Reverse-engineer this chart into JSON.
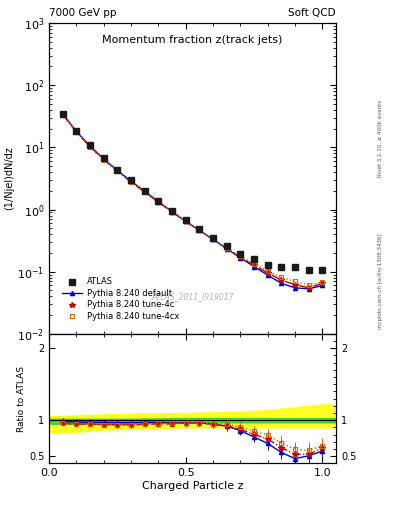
{
  "title_top_left": "7000 GeV pp",
  "title_top_right": "Soft QCD",
  "plot_title": "Momentum fraction z(track jets)",
  "ylabel_main": "(1/Njel)dN/dz",
  "ylabel_ratio": "Ratio to ATLAS",
  "xlabel": "Charged Particle z",
  "watermark": "ATLAS_2011_I919017",
  "right_label_top": "Rivet 3.1.10, ≥ 400k events",
  "right_label_bot": "mcplots.cern.ch [arXiv:1306.3436]",
  "z_values": [
    0.05,
    0.1,
    0.15,
    0.2,
    0.25,
    0.3,
    0.35,
    0.4,
    0.45,
    0.5,
    0.55,
    0.6,
    0.65,
    0.7,
    0.75,
    0.8,
    0.85,
    0.9,
    0.95,
    1.0
  ],
  "atlas_y": [
    35.0,
    18.5,
    10.8,
    6.7,
    4.4,
    2.95,
    2.02,
    1.38,
    0.96,
    0.67,
    0.48,
    0.35,
    0.255,
    0.195,
    0.158,
    0.13,
    0.118,
    0.118,
    0.105,
    0.105
  ],
  "atlas_yerr": [
    1.5,
    0.8,
    0.5,
    0.3,
    0.2,
    0.15,
    0.1,
    0.07,
    0.05,
    0.04,
    0.025,
    0.02,
    0.015,
    0.012,
    0.01,
    0.009,
    0.009,
    0.009,
    0.008,
    0.008
  ],
  "pythia_default_y": [
    34.5,
    18.0,
    10.5,
    6.5,
    4.25,
    2.85,
    1.96,
    1.34,
    0.925,
    0.645,
    0.462,
    0.33,
    0.234,
    0.167,
    0.121,
    0.088,
    0.065,
    0.055,
    0.053,
    0.06
  ],
  "pythia_4c_y": [
    33.5,
    17.5,
    10.2,
    6.3,
    4.12,
    2.76,
    1.9,
    1.31,
    0.91,
    0.643,
    0.462,
    0.33,
    0.236,
    0.17,
    0.127,
    0.096,
    0.073,
    0.062,
    0.055,
    0.065
  ],
  "pythia_4cx_y": [
    33.5,
    17.5,
    10.2,
    6.3,
    4.12,
    2.76,
    1.91,
    1.32,
    0.92,
    0.645,
    0.464,
    0.332,
    0.242,
    0.176,
    0.134,
    0.103,
    0.081,
    0.07,
    0.061,
    0.068
  ],
  "ratio_default": [
    0.986,
    0.973,
    0.972,
    0.97,
    0.966,
    0.966,
    0.97,
    0.971,
    0.963,
    0.963,
    0.963,
    0.943,
    0.918,
    0.856,
    0.766,
    0.677,
    0.551,
    0.466,
    0.505,
    0.571
  ],
  "ratio_4c": [
    0.957,
    0.946,
    0.944,
    0.94,
    0.936,
    0.936,
    0.941,
    0.949,
    0.948,
    0.959,
    0.963,
    0.943,
    0.925,
    0.872,
    0.804,
    0.738,
    0.619,
    0.525,
    0.524,
    0.619
  ],
  "ratio_4cx": [
    0.957,
    0.946,
    0.944,
    0.94,
    0.936,
    0.936,
    0.946,
    0.957,
    0.958,
    0.963,
    0.967,
    0.949,
    0.949,
    0.903,
    0.848,
    0.792,
    0.686,
    0.593,
    0.581,
    0.648
  ],
  "ratio_default_err": [
    0.04,
    0.038,
    0.038,
    0.038,
    0.038,
    0.038,
    0.038,
    0.038,
    0.04,
    0.045,
    0.048,
    0.055,
    0.065,
    0.068,
    0.075,
    0.085,
    0.095,
    0.11,
    0.11,
    0.11
  ],
  "ratio_4c_err": [
    0.04,
    0.038,
    0.038,
    0.038,
    0.038,
    0.038,
    0.038,
    0.038,
    0.04,
    0.045,
    0.048,
    0.055,
    0.065,
    0.068,
    0.075,
    0.085,
    0.095,
    0.11,
    0.11,
    0.11
  ],
  "ratio_4cx_err": [
    0.04,
    0.038,
    0.038,
    0.038,
    0.038,
    0.038,
    0.038,
    0.038,
    0.04,
    0.045,
    0.048,
    0.055,
    0.065,
    0.068,
    0.075,
    0.085,
    0.095,
    0.11,
    0.11,
    0.11
  ],
  "green_band_z": [
    0.0,
    0.05,
    0.1,
    0.2,
    0.3,
    0.5,
    0.7,
    0.8,
    0.9,
    1.0,
    1.05
  ],
  "green_band_lo": [
    0.95,
    0.95,
    0.95,
    0.96,
    0.96,
    0.97,
    0.97,
    0.97,
    0.97,
    0.97,
    0.97
  ],
  "green_band_hi": [
    1.02,
    1.02,
    1.02,
    1.02,
    1.02,
    1.03,
    1.03,
    1.03,
    1.03,
    1.03,
    1.03
  ],
  "yellow_band_z": [
    0.0,
    0.05,
    0.1,
    0.2,
    0.3,
    0.5,
    0.7,
    0.8,
    0.85,
    0.9,
    0.95,
    1.0,
    1.05
  ],
  "yellow_band_lo": [
    0.83,
    0.83,
    0.84,
    0.87,
    0.88,
    0.9,
    0.9,
    0.9,
    0.9,
    0.9,
    0.9,
    0.9,
    0.9
  ],
  "yellow_band_hi": [
    1.06,
    1.06,
    1.07,
    1.08,
    1.09,
    1.1,
    1.12,
    1.14,
    1.16,
    1.18,
    1.2,
    1.22,
    1.22
  ],
  "color_atlas": "#1a1a1a",
  "color_default": "#0000cc",
  "color_4c": "#cc0000",
  "color_4cx": "#cc6600",
  "xlim": [
    0.0,
    1.05
  ],
  "ylim_main_lo": 0.01,
  "ylim_main_hi": 1000,
  "ylim_ratio_lo": 0.4,
  "ylim_ratio_hi": 2.2
}
